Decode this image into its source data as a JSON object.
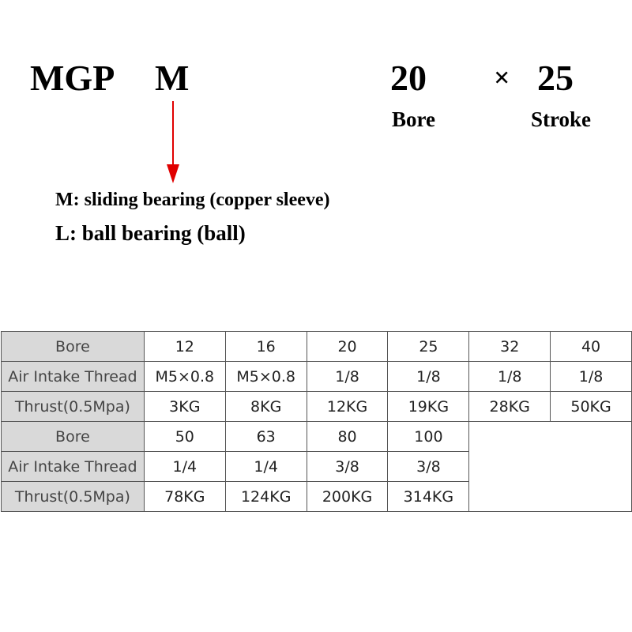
{
  "model": {
    "series": "MGP",
    "bearing_code": "M",
    "bore": "20",
    "times": "×",
    "stroke": "25",
    "bore_label": "Bore",
    "stroke_label": "Stroke"
  },
  "options": [
    "M: sliding bearing (copper sleeve)",
    "L: ball bearing (ball)"
  ],
  "arrow_color": "#e00000",
  "table": {
    "row_labels": [
      "Bore",
      "Air Intake Thread",
      "Thrust(0.5Mpa)"
    ],
    "block1": {
      "bore": [
        "12",
        "16",
        "20",
        "25",
        "32",
        "40"
      ],
      "thread": [
        "M5×0.8",
        "M5×0.8",
        "1/8",
        "1/8",
        "1/8",
        "1/8"
      ],
      "thrust": [
        "3KG",
        "8KG",
        "12KG",
        "19KG",
        "28KG",
        "50KG"
      ]
    },
    "block2": {
      "bore": [
        "50",
        "63",
        "80",
        "100"
      ],
      "thread": [
        "1/4",
        "1/4",
        "3/8",
        "3/8"
      ],
      "thrust": [
        "78KG",
        "124KG",
        "200KG",
        "314KG"
      ]
    }
  }
}
